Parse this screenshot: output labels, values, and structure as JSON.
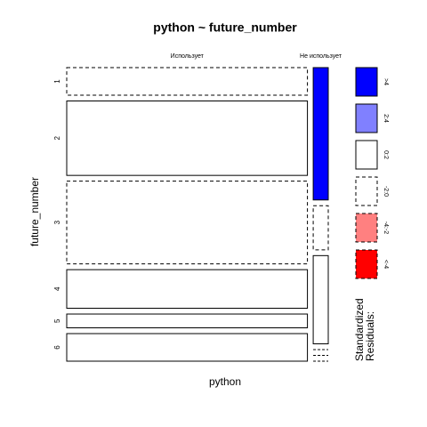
{
  "chart_data": {
    "type": "mosaic",
    "title": "python ~ future_number",
    "x_label": "python",
    "y_label": "future_number",
    "columns": [
      "Использует",
      "Не использует"
    ],
    "rows": [
      "1",
      "2",
      "3",
      "4",
      "5",
      "6"
    ],
    "values": [
      [
        10,
        27,
        30,
        14,
        5,
        10
      ],
      [
        3,
        1,
        2,
        0,
        0,
        0
      ]
    ],
    "shading": [
      [
        3,
        2,
        3,
        2,
        2,
        2
      ],
      [
        0,
        3,
        2,
        3,
        3,
        3
      ]
    ],
    "legend": {
      "title": [
        "Standardized",
        "Residuals:"
      ],
      "labels": [
        ">4",
        "2:4",
        "0:2",
        "-2:0",
        "-4:-2",
        "<-4"
      ],
      "colors": [
        "#0000ff",
        "#8080ff",
        "#ffffff",
        "#ffffff",
        "#ff8080",
        "#ff0000"
      ],
      "dashed": [
        false,
        false,
        false,
        true,
        true,
        true
      ]
    }
  }
}
